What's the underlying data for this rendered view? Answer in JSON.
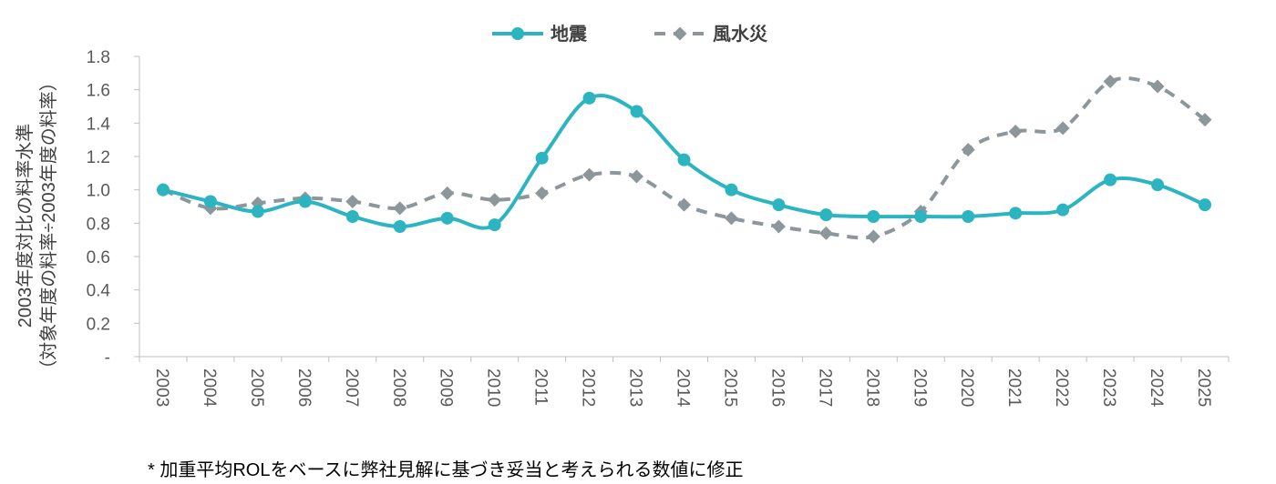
{
  "chart_data": {
    "type": "line",
    "title": "",
    "xlabel": "",
    "ylabel_lines": [
      "2003年度対比の料率水準",
      "（対象年度の料率÷2003年度の料率）"
    ],
    "categories": [
      "2003",
      "2004",
      "2005",
      "2006",
      "2007",
      "2008",
      "2009",
      "2010",
      "2011",
      "2012",
      "2013",
      "2014",
      "2015",
      "2016",
      "2017",
      "2018",
      "2019",
      "2020",
      "2021",
      "2022",
      "2023",
      "2024",
      "2025"
    ],
    "ylim": [
      0,
      1.8
    ],
    "yticks": [
      0,
      0.2,
      0.4,
      0.6,
      0.8,
      1.0,
      1.2,
      1.4,
      1.6,
      1.8
    ],
    "ytick_labels": [
      "-",
      "0.2",
      "0.4",
      "0.6",
      "0.8",
      "1.0",
      "1.2",
      "1.4",
      "1.6",
      "1.8"
    ],
    "grid": false,
    "legend_position": "top-center",
    "series": [
      {
        "name": "地震",
        "color": "#2cb5c0",
        "style": "solid",
        "marker": "circle",
        "values": [
          1.0,
          0.93,
          0.87,
          0.93,
          0.84,
          0.78,
          0.83,
          0.79,
          1.19,
          1.55,
          1.47,
          1.18,
          1.0,
          0.91,
          0.85,
          0.84,
          0.84,
          0.84,
          0.86,
          0.88,
          1.06,
          1.03,
          0.91
        ]
      },
      {
        "name": "風水災",
        "color": "#8c979c",
        "style": "dashed",
        "marker": "diamond",
        "values": [
          1.0,
          0.89,
          0.92,
          0.95,
          0.93,
          0.89,
          0.98,
          0.94,
          0.98,
          1.09,
          1.08,
          0.91,
          0.83,
          0.78,
          0.74,
          0.72,
          0.87,
          1.24,
          1.35,
          1.37,
          1.65,
          1.62,
          1.42
        ]
      }
    ]
  },
  "footnote": "* 加重平均ROLをベースに弊社見解に基づき妥当と考えられる数値に修正"
}
